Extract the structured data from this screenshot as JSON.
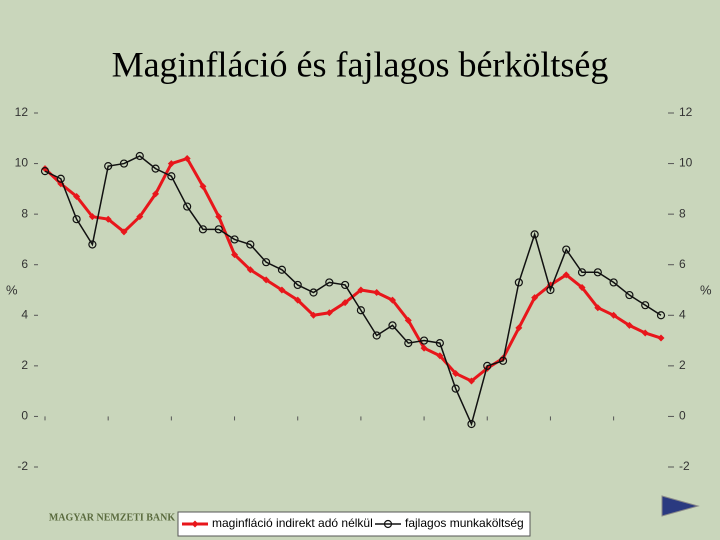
{
  "chart_data": {
    "type": "line",
    "title": "Maginfláció és fajlagos bérköltség",
    "y_label": "%",
    "y2_label": "%",
    "categories": [
      null,
      null,
      null,
      null,
      null,
      null,
      null,
      null,
      null,
      null,
      null,
      null,
      null,
      null,
      null,
      null,
      null,
      null,
      null,
      null,
      null,
      null,
      null,
      null,
      null,
      null,
      null,
      null,
      null,
      null,
      null,
      null,
      null,
      null,
      null,
      null,
      null,
      null,
      null,
      null
    ],
    "series": [
      {
        "name": "maginfláció indirekt adó nélkül",
        "color": "#e8161b",
        "marker": "diamond",
        "values": [
          9.8,
          9.2,
          8.7,
          7.9,
          7.8,
          7.3,
          7.9,
          8.8,
          10.0,
          10.2,
          9.1,
          7.9,
          6.4,
          5.8,
          5.4,
          5.0,
          4.6,
          4.0,
          4.1,
          4.5,
          5.0,
          4.9,
          4.6,
          3.8,
          2.7,
          2.4,
          1.7,
          1.4,
          1.9,
          2.3,
          3.5,
          4.7,
          5.2,
          5.6,
          5.1,
          4.3,
          4.0,
          3.6,
          3.3,
          3.1
        ]
      },
      {
        "name": "fajlagos munkaköltség",
        "color": "#111111",
        "marker": "circle",
        "values": [
          9.7,
          9.4,
          7.8,
          6.8,
          9.9,
          10.0,
          10.3,
          9.8,
          9.5,
          8.3,
          7.4,
          7.4,
          7.0,
          6.8,
          6.1,
          5.8,
          5.2,
          4.9,
          5.3,
          5.2,
          4.2,
          3.2,
          3.6,
          2.9,
          3.0,
          2.9,
          1.1,
          -0.3,
          2.0,
          2.2,
          5.3,
          7.2,
          5.0,
          6.6,
          5.7,
          5.7,
          5.3,
          4.8,
          4.4,
          4.0
        ]
      }
    ],
    "ylim": [
      -2,
      12
    ],
    "yticks": [
      -2,
      0,
      2,
      4,
      6,
      8,
      10,
      12
    ],
    "y2lim": [
      -2,
      12
    ],
    "y2ticks": [
      -2,
      0,
      2,
      4,
      6,
      8,
      10,
      12
    ],
    "legend": "bottom",
    "grid": false
  },
  "logo": "MAGYAR NEMZETI BANK"
}
